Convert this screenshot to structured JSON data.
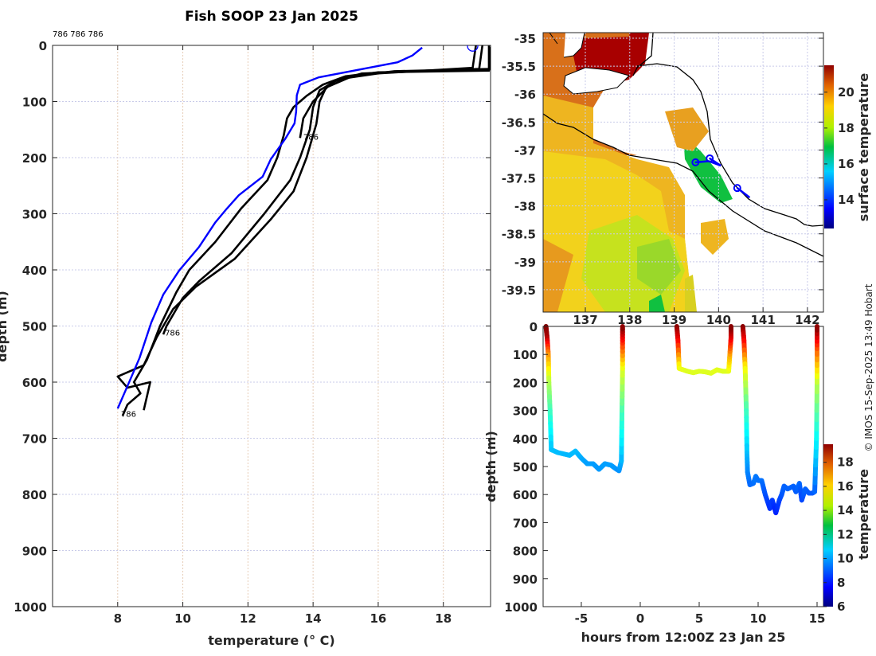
{
  "title": "Fish SOOP 23 Jan 2025",
  "copyright": "© IMOS 15-Sep-2025 13:49 Hobart",
  "chart_data": [
    {
      "type": "line",
      "name": "temperature-depth-profiles",
      "title": "Fish SOOP 23 Jan 2025",
      "xlabel": "temperature (° C)",
      "xlabel_main": "temperature (",
      "xlabel_sup": "o",
      "xlabel_end": " C)",
      "ylabel": "depth (m)",
      "xlim": [
        6,
        19.45
      ],
      "ylim": [
        0,
        1000
      ],
      "y_reversed": true,
      "grid": true,
      "xticks": [
        8,
        10,
        12,
        14,
        16,
        18
      ],
      "yticks": [
        0,
        100,
        200,
        300,
        400,
        500,
        600,
        700,
        800,
        900,
        1000
      ],
      "header_annotation": "786 786 786",
      "annotations": [
        {
          "text": "786",
          "x": 13.7,
          "y": 168
        },
        {
          "text": "786",
          "x": 9.45,
          "y": 517
        },
        {
          "text": "786",
          "x": 8.1,
          "y": 662
        }
      ],
      "marker_circle": {
        "x": 18.9,
        "y": 1,
        "color": "#0000ff"
      },
      "series": [
        {
          "name": "reference",
          "color": "#0000ff",
          "points": [
            [
              17.35,
              4
            ],
            [
              17.05,
              18
            ],
            [
              16.6,
              30
            ],
            [
              14.17,
              57
            ],
            [
              13.6,
              70
            ],
            [
              13.5,
              89
            ],
            [
              13.48,
              118
            ],
            [
              13.43,
              139
            ],
            [
              13.14,
              167
            ],
            [
              12.7,
              203
            ],
            [
              12.45,
              234
            ],
            [
              11.72,
              267
            ],
            [
              11.35,
              291
            ],
            [
              10.99,
              316
            ],
            [
              10.5,
              359
            ],
            [
              9.89,
              401
            ],
            [
              9.4,
              444
            ],
            [
              9.03,
              494
            ],
            [
              8.67,
              557
            ],
            [
              8.3,
              607
            ],
            [
              8.0,
              647
            ]
          ]
        },
        {
          "name": "profile-1",
          "color": "#000000",
          "points": [
            [
              19.4,
              0
            ],
            [
              19.4,
              45
            ],
            [
              16,
              48
            ],
            [
              15,
              55
            ],
            [
              14.3,
              70
            ],
            [
              13.8,
              90
            ],
            [
              13.4,
              110
            ],
            [
              13.2,
              130
            ],
            [
              13.1,
              160
            ],
            [
              12.9,
              200
            ],
            [
              12.6,
              240
            ],
            [
              11.8,
              290
            ],
            [
              11.0,
              350
            ],
            [
              10.2,
              400
            ],
            [
              9.8,
              440
            ],
            [
              9.3,
              500
            ],
            [
              8.9,
              560
            ],
            [
              8.5,
              600
            ],
            [
              8.7,
              620
            ],
            [
              8.3,
              640
            ],
            [
              8.15,
              660
            ]
          ]
        },
        {
          "name": "profile-2",
          "color": "#000000",
          "points": [
            [
              19,
              0
            ],
            [
              18.9,
              40
            ],
            [
              16,
              50
            ],
            [
              14.8,
              60
            ],
            [
              14.2,
              80
            ],
            [
              14.0,
              110
            ],
            [
              13.9,
              150
            ],
            [
              13.6,
              200
            ],
            [
              13.3,
              240
            ],
            [
              12.5,
              300
            ],
            [
              11.5,
              370
            ],
            [
              10.5,
              420
            ],
            [
              10.0,
              450
            ],
            [
              9.5,
              500
            ],
            [
              9.4,
              515
            ]
          ]
        },
        {
          "name": "profile-3",
          "color": "#000000",
          "points": [
            [
              19.2,
              0
            ],
            [
              19.1,
              42
            ],
            [
              15.5,
              50
            ],
            [
              14.6,
              65
            ],
            [
              14.0,
              100
            ],
            [
              13.7,
              130
            ],
            [
              13.6,
              165
            ]
          ]
        },
        {
          "name": "profile-4",
          "color": "#000000",
          "points": [
            [
              19.45,
              3
            ],
            [
              19.45,
              42
            ],
            [
              16.5,
              46
            ],
            [
              15.2,
              55
            ],
            [
              14.4,
              75
            ],
            [
              14.2,
              100
            ],
            [
              14.1,
              140
            ],
            [
              13.8,
              200
            ],
            [
              13.4,
              260
            ],
            [
              12.7,
              310
            ],
            [
              11.6,
              380
            ],
            [
              10.4,
              430
            ],
            [
              9.7,
              470
            ],
            [
              9.2,
              520
            ],
            [
              8.8,
              570
            ],
            [
              8.0,
              590
            ],
            [
              8.3,
              610
            ],
            [
              9.0,
              600
            ],
            [
              8.8,
              650
            ]
          ]
        }
      ]
    },
    {
      "type": "heatmap",
      "name": "sst-map",
      "xlim": [
        136.05,
        142.36
      ],
      "ylim": [
        -39.9,
        -34.9
      ],
      "xticks": [
        137,
        138,
        139,
        140,
        141,
        142
      ],
      "yticks": [
        -35,
        -35.5,
        -36,
        -36.5,
        -37,
        -37.5,
        -38,
        -38.5,
        -39,
        -39.5
      ],
      "colorbar": {
        "label": "surface temperature",
        "range": [
          12.4,
          21.5
        ],
        "ticks": [
          14,
          16,
          18,
          20
        ]
      },
      "track_markers": [
        [
          139.48,
          -37.22
        ],
        [
          139.8,
          -37.15
        ],
        [
          140.42,
          -37.68
        ]
      ],
      "track_segments": [
        [
          [
            139.48,
            -37.22
          ],
          [
            139.78,
            -37.2
          ],
          [
            140.05,
            -37.28
          ]
        ],
        [
          [
            139.8,
            -37.15
          ],
          [
            140.05,
            -37.28
          ]
        ],
        [
          [
            140.42,
            -37.68
          ],
          [
            140.7,
            -37.85
          ]
        ]
      ]
    },
    {
      "type": "scatter",
      "name": "depth-time-track",
      "xlabel": "hours from 12:00Z 23 Jan 25",
      "ylabel": "depth (m)",
      "xlim": [
        -8.24,
        15.54
      ],
      "ylim": [
        0,
        1000
      ],
      "y_reversed": true,
      "xticks": [
        -5,
        0,
        5,
        10,
        15
      ],
      "yticks": [
        0,
        100,
        200,
        300,
        400,
        500,
        600,
        700,
        800,
        900,
        1000
      ],
      "colorbar": {
        "label": "temperature",
        "range": [
          6,
          19.5
        ],
        "ticks": [
          6,
          8,
          10,
          12,
          14,
          16,
          18
        ]
      },
      "segments": [
        [
          [
            -8,
            0,
            19.5
          ],
          [
            -7.9,
            40,
            19
          ],
          [
            -7.8,
            100,
            16
          ],
          [
            -7.75,
            200,
            13.5
          ],
          [
            -7.65,
            300,
            12
          ],
          [
            -7.55,
            440,
            10.3
          ],
          [
            -7,
            450,
            10.2
          ],
          [
            -6,
            460,
            10.1
          ],
          [
            -5.5,
            445,
            10.2
          ],
          [
            -5,
            470,
            10
          ],
          [
            -4.5,
            490,
            9.8
          ],
          [
            -4,
            490,
            9.8
          ],
          [
            -3.5,
            510,
            9.7
          ],
          [
            -3,
            490,
            9.8
          ],
          [
            -2.5,
            495,
            9.8
          ],
          [
            -2,
            510,
            9.7
          ],
          [
            -1.8,
            515,
            9.6
          ],
          [
            -1.6,
            480,
            10
          ],
          [
            -1.55,
            300,
            12
          ],
          [
            -1.5,
            150,
            14
          ],
          [
            -1.5,
            60,
            17
          ],
          [
            -1.5,
            0,
            19.5
          ]
        ],
        [
          [
            3.1,
            0,
            19.5
          ],
          [
            3.2,
            50,
            18
          ],
          [
            3.3,
            150,
            14.3
          ],
          [
            4,
            160,
            14
          ],
          [
            4.5,
            165,
            14
          ],
          [
            5,
            160,
            14
          ],
          [
            5.5,
            162,
            14
          ],
          [
            6,
            167,
            14
          ],
          [
            6.5,
            155,
            14.1
          ],
          [
            7,
            160,
            14
          ],
          [
            7.5,
            160,
            14
          ],
          [
            7.6,
            100,
            15.5
          ],
          [
            7.7,
            40,
            18
          ],
          [
            7.7,
            0,
            19.5
          ]
        ],
        [
          [
            8.7,
            0,
            19.5
          ],
          [
            8.8,
            50,
            18
          ],
          [
            8.9,
            150,
            14.5
          ],
          [
            9,
            300,
            12
          ],
          [
            9.05,
            450,
            10.3
          ],
          [
            9.1,
            520,
            9.5
          ],
          [
            9.3,
            565,
            9.1
          ],
          [
            9.6,
            560,
            9.1
          ],
          [
            9.8,
            535,
            9.3
          ],
          [
            10,
            550,
            9.2
          ],
          [
            10.3,
            550,
            9.2
          ],
          [
            10.6,
            600,
            8.8
          ],
          [
            11,
            650,
            8.3
          ],
          [
            11.2,
            620,
            8.5
          ],
          [
            11.5,
            665,
            8.1
          ],
          [
            11.8,
            620,
            8.5
          ],
          [
            12,
            600,
            8.8
          ],
          [
            12.2,
            570,
            9
          ],
          [
            12.5,
            580,
            9
          ],
          [
            13,
            570,
            9
          ],
          [
            13.2,
            590,
            8.9
          ],
          [
            13.5,
            560,
            9.1
          ],
          [
            13.7,
            620,
            8.6
          ],
          [
            14,
            580,
            9
          ],
          [
            14.3,
            595,
            8.9
          ],
          [
            14.6,
            595,
            8.9
          ],
          [
            14.8,
            590,
            8.9
          ],
          [
            14.95,
            400,
            11
          ],
          [
            15,
            200,
            13.5
          ],
          [
            15,
            80,
            16.5
          ],
          [
            15,
            0,
            19.5
          ]
        ]
      ]
    }
  ]
}
